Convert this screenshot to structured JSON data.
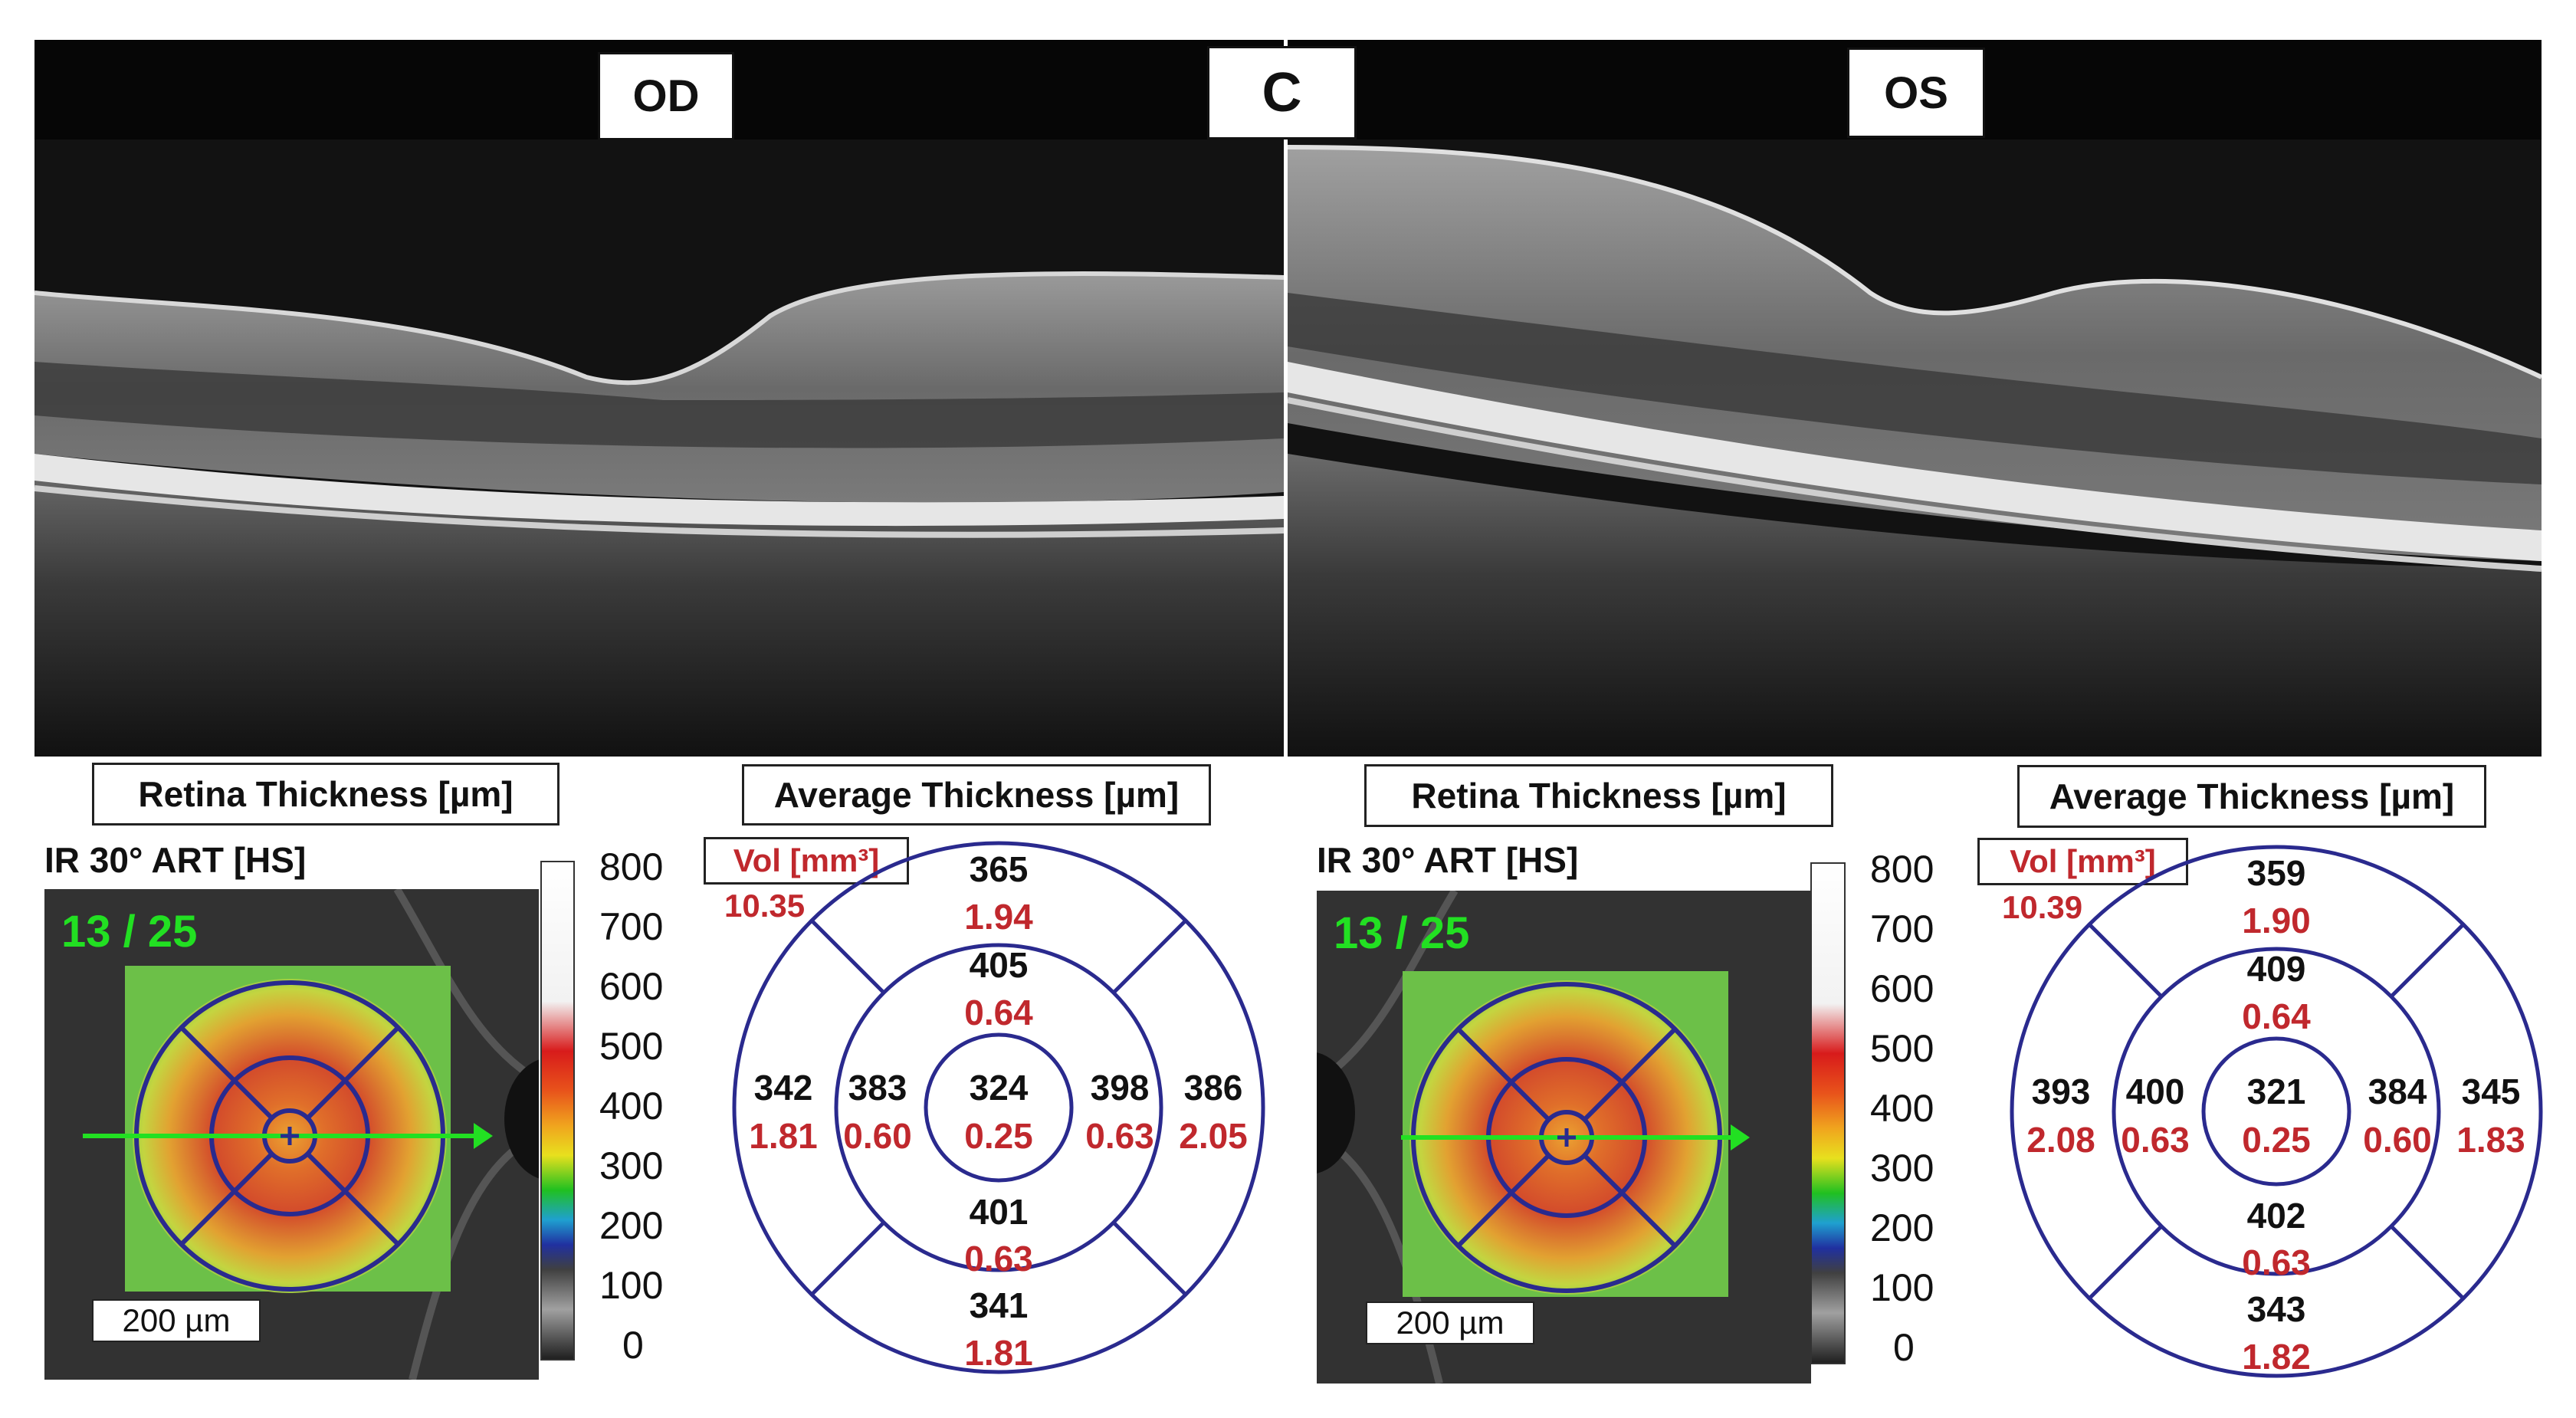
{
  "panel_label": "C",
  "eyes": [
    {
      "eye_label": "OD",
      "retina_title": "Retina Thickness [µm]",
      "avg_title": "Average Thickness [µm]",
      "ir_label": "IR 30° ART [HS]",
      "scan_count": "13 / 25",
      "scale_bar": "200 µm",
      "vol_label": "Vol [mm³]",
      "total_volume": "10.35",
      "sectors": {
        "center": {
          "thickness": "324",
          "volume": "0.25"
        },
        "inner_superior": {
          "thickness": "405",
          "volume": "0.64"
        },
        "inner_nasal": {
          "thickness": "398",
          "volume": "0.63"
        },
        "inner_inferior": {
          "thickness": "401",
          "volume": "0.63"
        },
        "inner_temporal": {
          "thickness": "383",
          "volume": "0.60"
        },
        "outer_superior": {
          "thickness": "365",
          "volume": "1.94"
        },
        "outer_nasal": {
          "thickness": "386",
          "volume": "2.05"
        },
        "outer_inferior": {
          "thickness": "341",
          "volume": "1.81"
        },
        "outer_temporal": {
          "thickness": "342",
          "volume": "1.81"
        }
      }
    },
    {
      "eye_label": "OS",
      "retina_title": "Retina Thickness [µm]",
      "avg_title": "Average Thickness [µm]",
      "ir_label": "IR 30° ART [HS]",
      "scan_count": "13 / 25",
      "scale_bar": "200 µm",
      "vol_label": "Vol [mm³]",
      "total_volume": "10.39",
      "sectors": {
        "center": {
          "thickness": "321",
          "volume": "0.25"
        },
        "inner_superior": {
          "thickness": "409",
          "volume": "0.64"
        },
        "inner_nasal": {
          "thickness": "400",
          "volume": "0.63"
        },
        "inner_inferior": {
          "thickness": "402",
          "volume": "0.63"
        },
        "inner_temporal": {
          "thickness": "384",
          "volume": "0.60"
        },
        "outer_superior": {
          "thickness": "359",
          "volume": "1.90"
        },
        "outer_nasal": {
          "thickness": "393",
          "volume": "2.08"
        },
        "outer_inferior": {
          "thickness": "343",
          "volume": "1.82"
        },
        "outer_temporal": {
          "thickness": "345",
          "volume": "1.83"
        }
      }
    }
  ],
  "colorbar_ticks": [
    "800",
    "700",
    "600",
    "500",
    "400",
    "300",
    "200",
    "100",
    "0"
  ],
  "colors": {
    "grid_blue": "#2a2a8e",
    "volume_red": "#c0282d",
    "scan_green": "#22e022"
  }
}
